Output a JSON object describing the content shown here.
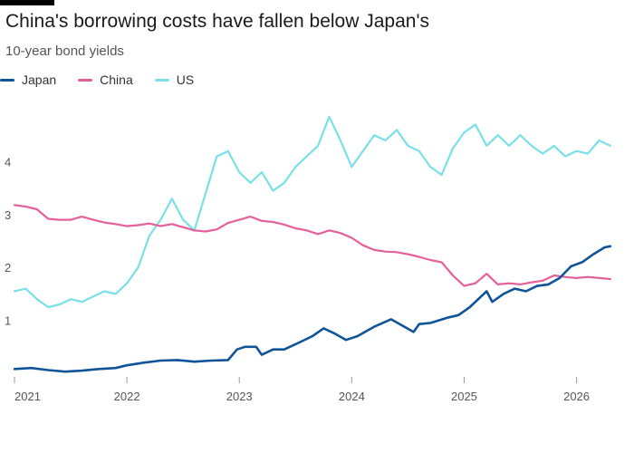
{
  "chart_data": {
    "type": "line",
    "title": "China's borrowing costs have fallen below Japan's",
    "subtitle": "10-year bond yields",
    "xlabel": "",
    "ylabel": "",
    "xlim": [
      2021.0,
      2026.35
    ],
    "ylim": [
      0,
      5
    ],
    "y_ticks": [
      1,
      2,
      3,
      4
    ],
    "x_ticks": [
      2021,
      2022,
      2023,
      2024,
      2025,
      2026
    ],
    "grid": false,
    "legend_position": "top-left",
    "series": [
      {
        "name": "Japan",
        "color": "#0f5499",
        "x": [
          2021.0,
          2021.15,
          2021.3,
          2021.45,
          2021.6,
          2021.75,
          2021.9,
          2022.0,
          2022.15,
          2022.3,
          2022.45,
          2022.6,
          2022.75,
          2022.9,
          2022.98,
          2023.05,
          2023.15,
          2023.2,
          2023.3,
          2023.4,
          2023.55,
          2023.65,
          2023.75,
          2023.85,
          2023.95,
          2024.05,
          2024.2,
          2024.35,
          2024.45,
          2024.55,
          2024.6,
          2024.7,
          2024.85,
          2024.95,
          2025.05,
          2025.15,
          2025.2,
          2025.25,
          2025.35,
          2025.45,
          2025.55,
          2025.65,
          2025.75,
          2025.85,
          2025.95,
          2026.05,
          2026.15,
          2026.25,
          2026.3
        ],
        "values": [
          0.08,
          0.1,
          0.06,
          0.03,
          0.05,
          0.08,
          0.1,
          0.15,
          0.2,
          0.24,
          0.25,
          0.22,
          0.24,
          0.25,
          0.45,
          0.5,
          0.5,
          0.35,
          0.45,
          0.45,
          0.6,
          0.7,
          0.85,
          0.75,
          0.63,
          0.7,
          0.88,
          1.02,
          0.9,
          0.78,
          0.93,
          0.95,
          1.05,
          1.1,
          1.25,
          1.45,
          1.55,
          1.35,
          1.5,
          1.6,
          1.55,
          1.65,
          1.68,
          1.8,
          2.02,
          2.1,
          2.25,
          2.38,
          2.4
        ]
      },
      {
        "name": "China",
        "color": "#e55f99",
        "x": [
          2021.0,
          2021.1,
          2021.2,
          2021.3,
          2021.4,
          2021.5,
          2021.6,
          2021.7,
          2021.8,
          2021.9,
          2022.0,
          2022.1,
          2022.2,
          2022.3,
          2022.4,
          2022.5,
          2022.6,
          2022.7,
          2022.8,
          2022.9,
          2023.0,
          2023.1,
          2023.2,
          2023.3,
          2023.4,
          2023.5,
          2023.6,
          2023.7,
          2023.8,
          2023.9,
          2024.0,
          2024.1,
          2024.2,
          2024.3,
          2024.4,
          2024.5,
          2024.6,
          2024.7,
          2024.8,
          2024.9,
          2025.0,
          2025.1,
          2025.2,
          2025.3,
          2025.4,
          2025.5,
          2025.6,
          2025.7,
          2025.8,
          2025.9,
          2026.0,
          2026.1,
          2026.2,
          2026.3
        ],
        "values": [
          3.18,
          3.15,
          3.1,
          2.92,
          2.9,
          2.9,
          2.96,
          2.9,
          2.85,
          2.82,
          2.78,
          2.8,
          2.83,
          2.78,
          2.82,
          2.76,
          2.7,
          2.68,
          2.72,
          2.84,
          2.9,
          2.96,
          2.88,
          2.86,
          2.81,
          2.74,
          2.7,
          2.63,
          2.7,
          2.65,
          2.56,
          2.42,
          2.33,
          2.3,
          2.29,
          2.25,
          2.2,
          2.14,
          2.1,
          1.85,
          1.65,
          1.7,
          1.88,
          1.68,
          1.7,
          1.68,
          1.72,
          1.75,
          1.85,
          1.82,
          1.8,
          1.82,
          1.8,
          1.78
        ]
      },
      {
        "name": "US",
        "color": "#7ae0e8",
        "x": [
          2021.0,
          2021.1,
          2021.2,
          2021.3,
          2021.4,
          2021.5,
          2021.6,
          2021.7,
          2021.8,
          2021.9,
          2022.0,
          2022.1,
          2022.2,
          2022.3,
          2022.4,
          2022.5,
          2022.6,
          2022.7,
          2022.8,
          2022.9,
          2023.0,
          2023.1,
          2023.2,
          2023.3,
          2023.4,
          2023.5,
          2023.6,
          2023.7,
          2023.8,
          2023.9,
          2024.0,
          2024.1,
          2024.2,
          2024.3,
          2024.4,
          2024.5,
          2024.6,
          2024.7,
          2024.8,
          2024.9,
          2025.0,
          2025.1,
          2025.2,
          2025.3,
          2025.4,
          2025.5,
          2025.6,
          2025.7,
          2025.8,
          2025.9,
          2026.0,
          2026.1,
          2026.2,
          2026.3
        ],
        "values": [
          1.55,
          1.6,
          1.4,
          1.25,
          1.3,
          1.4,
          1.35,
          1.45,
          1.55,
          1.5,
          1.7,
          2.0,
          2.6,
          2.9,
          3.3,
          2.9,
          2.7,
          3.4,
          4.1,
          4.2,
          3.8,
          3.6,
          3.8,
          3.45,
          3.6,
          3.9,
          4.1,
          4.3,
          4.85,
          4.4,
          3.9,
          4.2,
          4.5,
          4.4,
          4.6,
          4.3,
          4.2,
          3.9,
          3.75,
          4.25,
          4.55,
          4.7,
          4.3,
          4.5,
          4.3,
          4.5,
          4.3,
          4.15,
          4.3,
          4.1,
          4.2,
          4.15,
          4.4,
          4.3
        ]
      }
    ]
  }
}
